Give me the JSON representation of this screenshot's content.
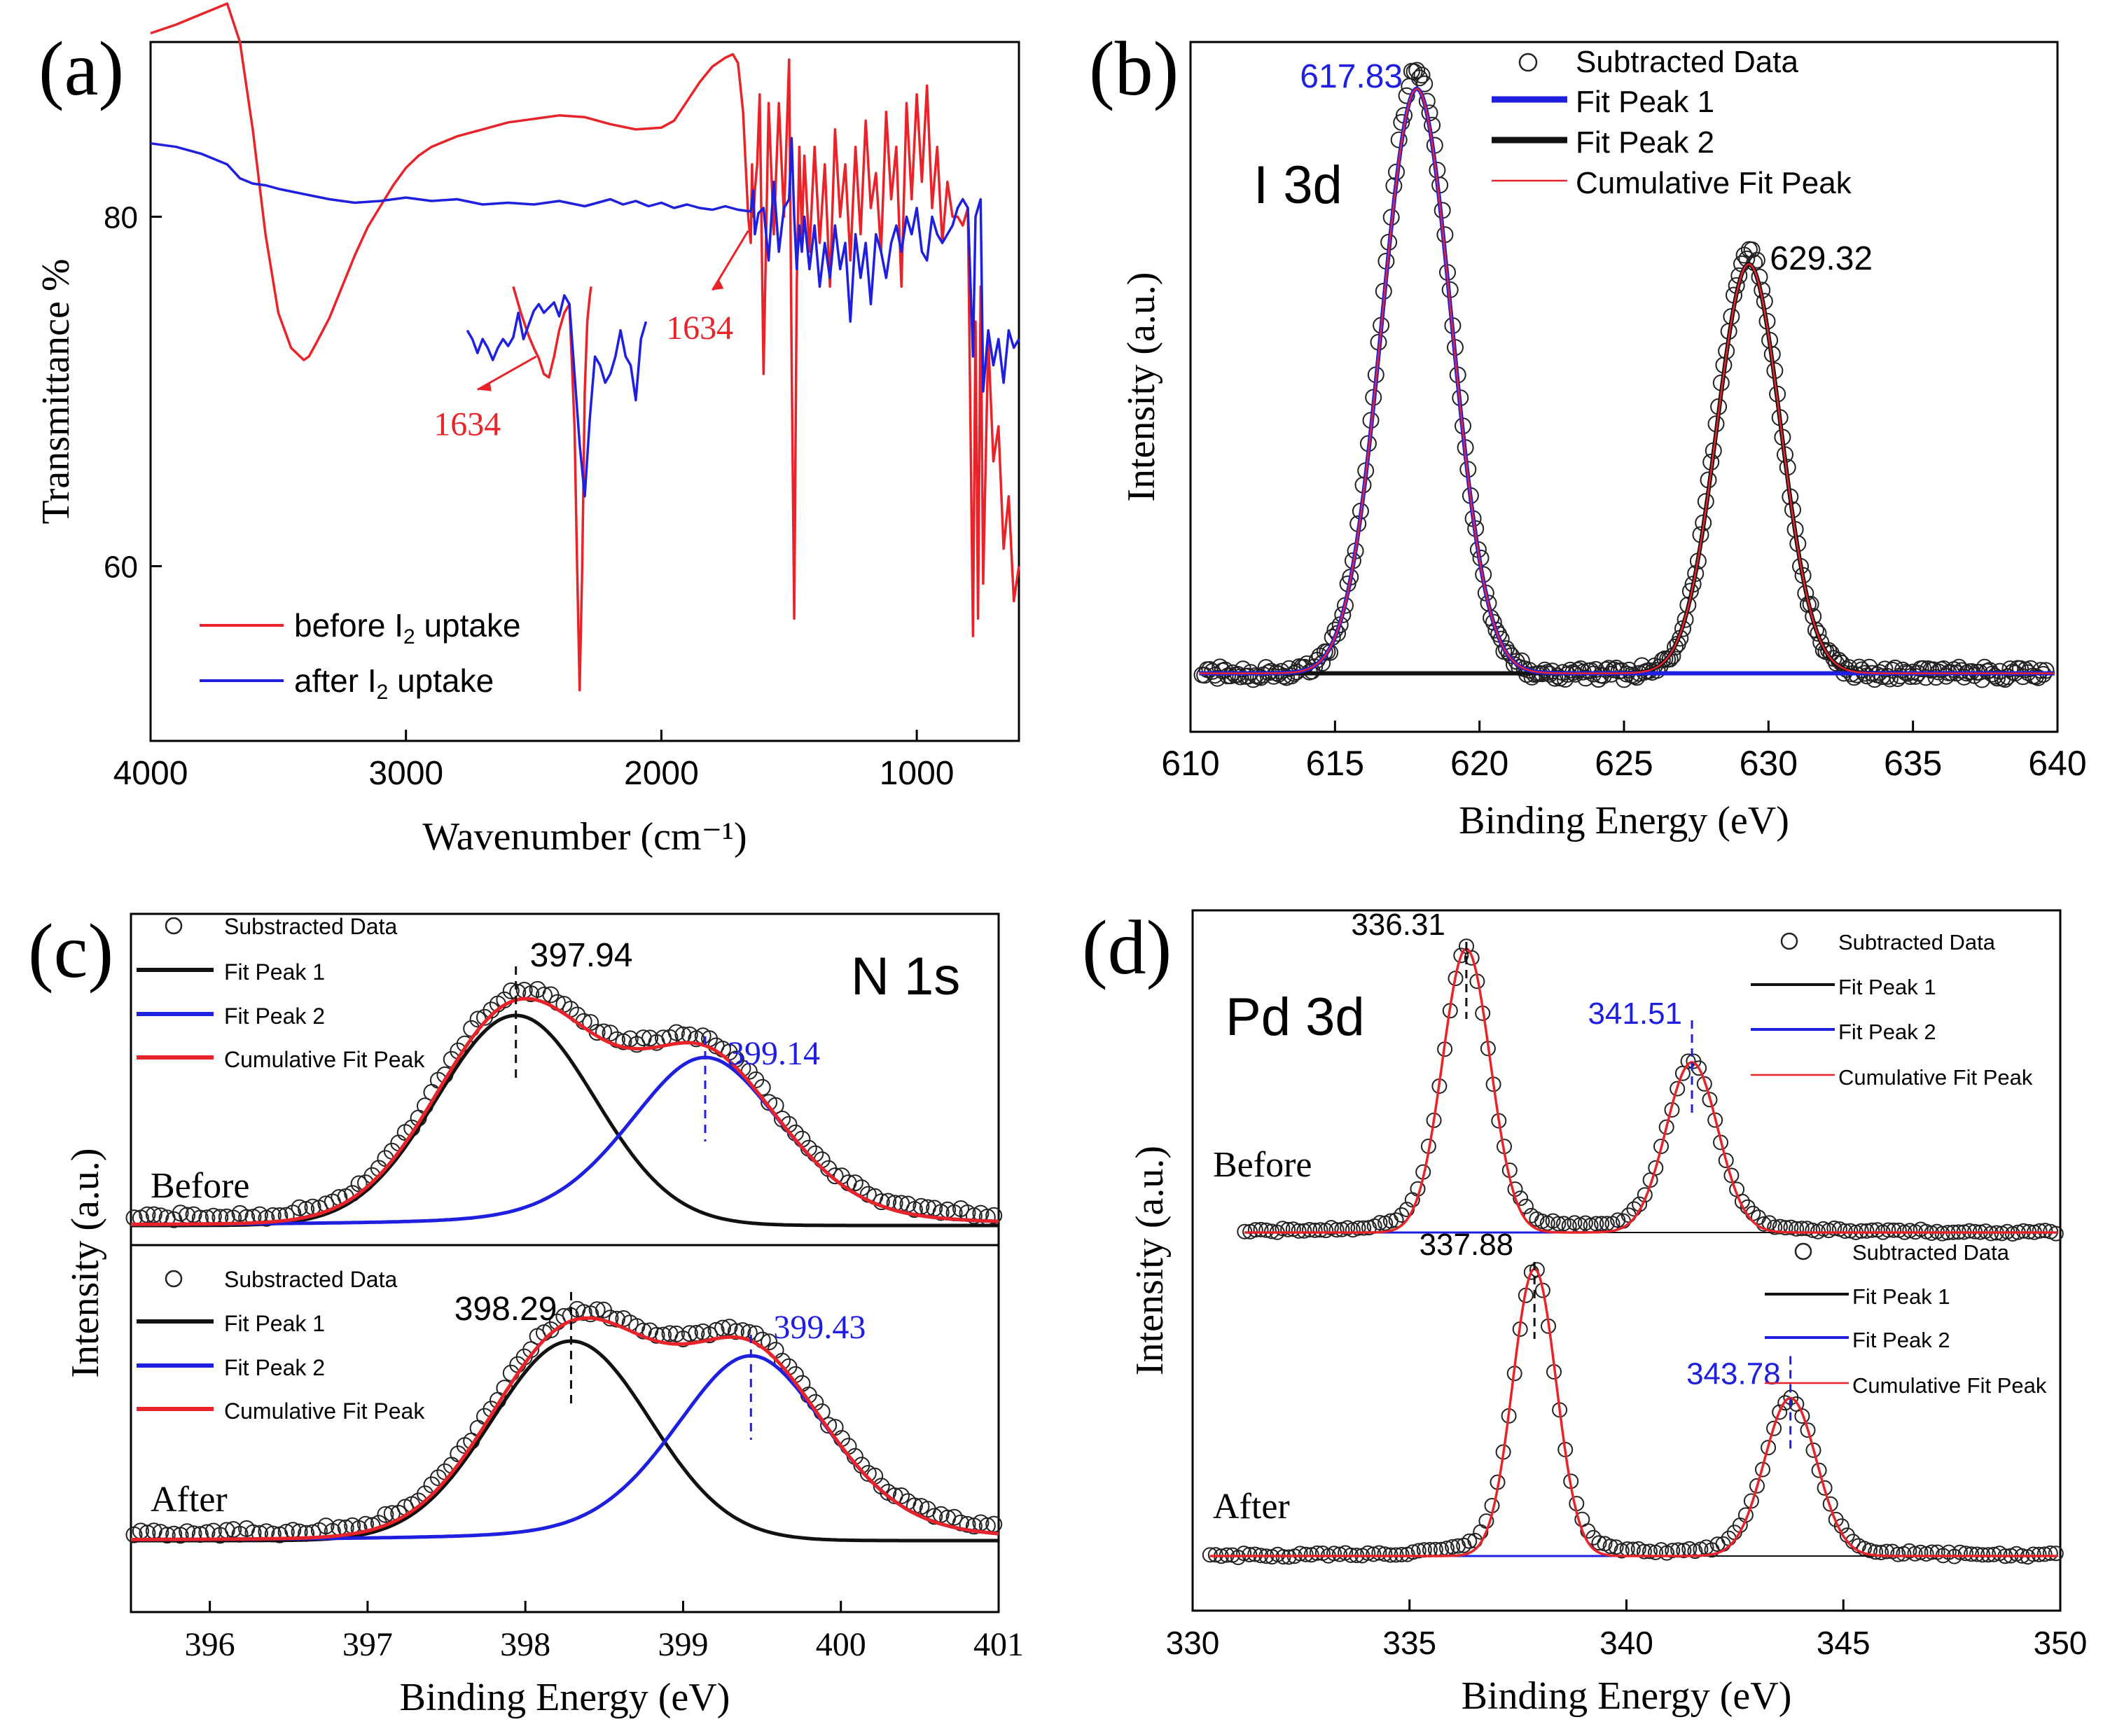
{
  "colors": {
    "red": "#e8242a",
    "blue": "#1f1fe0",
    "black": "#111111",
    "marker": "#222222"
  },
  "chart_data": [
    {
      "id": "a",
      "type": "line",
      "panel_label": "(a)",
      "xlabel": "Wavenumber (cm⁻¹)",
      "ylabel": "Transmittance %",
      "xlim": [
        4000,
        600
      ],
      "ylim": [
        50,
        90
      ],
      "xticks": [
        4000,
        3000,
        2000,
        1000
      ],
      "yticks": [
        60,
        80
      ],
      "legend": {
        "before_label": "before I",
        "after_label": "after I",
        "sub": "2",
        "suffix": " uptake"
      },
      "annotations": [
        "1634",
        "1634"
      ],
      "series": [
        {
          "name": "before I2 uptake",
          "color": "red",
          "x": [
            4000,
            3900,
            3800,
            3700,
            3650,
            3600,
            3550,
            3500,
            3450,
            3400,
            3380,
            3350,
            3300,
            3250,
            3200,
            3150,
            3100,
            3050,
            3000,
            2950,
            2900,
            2800,
            2700,
            2600,
            2500,
            2400,
            2300,
            2200,
            2100,
            2000,
            1950,
            1900,
            1850,
            1800,
            1750,
            1720,
            1700,
            1680,
            1660,
            1650,
            1645,
            1640,
            1634,
            1625,
            1615,
            1600,
            1580,
            1560,
            1540,
            1520,
            1500,
            1490,
            1480,
            1470,
            1460,
            1450,
            1440,
            1420,
            1400,
            1380,
            1360,
            1340,
            1320,
            1300,
            1280,
            1260,
            1240,
            1220,
            1200,
            1180,
            1160,
            1140,
            1120,
            1100,
            1080,
            1060,
            1040,
            1020,
            1000,
            980,
            960,
            940,
            920,
            900,
            880,
            860,
            840,
            820,
            800,
            780,
            770,
            760,
            750,
            740,
            720,
            700,
            680,
            660,
            640,
            620,
            600
          ],
          "y": [
            90.5,
            91.0,
            91.6,
            92.2,
            90.0,
            85.0,
            79.0,
            74.5,
            72.5,
            71.8,
            72.0,
            72.8,
            74.2,
            76.0,
            77.8,
            79.4,
            80.6,
            81.8,
            82.8,
            83.5,
            84.0,
            84.6,
            85.0,
            85.4,
            85.6,
            85.8,
            85.7,
            85.3,
            85.0,
            85.1,
            85.5,
            86.6,
            87.7,
            88.6,
            89.1,
            89.3,
            88.8,
            86.0,
            80.0,
            78.5,
            83.0,
            80.0,
            81.5,
            83.0,
            87.0,
            71.0,
            86.5,
            79.0,
            86.5,
            80.0,
            89.0,
            72.0,
            57.0,
            76.0,
            84.0,
            79.0,
            83.5,
            78.0,
            84.0,
            78.5,
            83.0,
            76.0,
            85.0,
            80.0,
            83.0,
            77.5,
            84.0,
            79.0,
            85.5,
            80.5,
            82.5,
            78.0,
            86.0,
            81.0,
            84.0,
            76.0,
            86.5,
            81.0,
            87.0,
            82.0,
            87.5,
            80.5,
            84.0,
            78.5,
            82.0,
            80.0,
            80.0,
            79.5,
            80.5,
            56.0,
            74.0,
            57.0,
            76.0,
            59.0,
            73.0,
            66.0,
            68.0,
            61.0,
            64.0,
            58.0,
            60.0
          ]
        },
        {
          "name": "after I2 uptake",
          "color": "blue",
          "x": [
            4000,
            3900,
            3800,
            3700,
            3650,
            3600,
            3550,
            3500,
            3400,
            3300,
            3200,
            3100,
            3000,
            2900,
            2800,
            2700,
            2600,
            2500,
            2400,
            2300,
            2200,
            2150,
            2100,
            2050,
            2000,
            1950,
            1900,
            1850,
            1800,
            1750,
            1700,
            1650,
            1640,
            1634,
            1620,
            1600,
            1580,
            1560,
            1540,
            1520,
            1500,
            1490,
            1480,
            1470,
            1460,
            1450,
            1440,
            1420,
            1400,
            1380,
            1360,
            1340,
            1320,
            1300,
            1280,
            1260,
            1240,
            1220,
            1200,
            1180,
            1160,
            1140,
            1120,
            1100,
            1080,
            1060,
            1040,
            1020,
            1000,
            980,
            960,
            940,
            920,
            900,
            880,
            860,
            840,
            820,
            800,
            780,
            770,
            760,
            750,
            740,
            720,
            700,
            680,
            660,
            640,
            620,
            600
          ],
          "y": [
            84.2,
            84.0,
            83.6,
            83.0,
            82.2,
            81.9,
            81.8,
            81.6,
            81.3,
            81.0,
            80.8,
            80.9,
            81.1,
            80.9,
            81.0,
            80.7,
            80.8,
            80.7,
            80.9,
            80.6,
            81.0,
            80.7,
            80.9,
            80.6,
            80.8,
            80.5,
            80.7,
            80.5,
            80.4,
            80.6,
            80.4,
            80.3,
            81.5,
            79.0,
            80.2,
            80.5,
            77.5,
            82.0,
            78.0,
            80.5,
            81.0,
            84.5,
            80.0,
            77.0,
            79.5,
            78.0,
            80.0,
            77.0,
            79.5,
            76.0,
            78.5,
            76.5,
            79.5,
            77.0,
            78.5,
            74.0,
            79.0,
            76.5,
            78.5,
            75.0,
            79.0,
            78.0,
            76.5,
            78.5,
            79.5,
            78.0,
            80.0,
            79.0,
            80.5,
            78.0,
            77.5,
            80.0,
            79.0,
            78.5,
            79.0,
            79.5,
            80.5,
            81.0,
            80.5,
            72.0,
            80.0,
            80.5,
            81.0,
            70.0,
            73.5,
            71.5,
            73.0,
            70.5,
            73.5,
            72.5,
            73.0
          ]
        }
      ],
      "inset": {
        "series": [
          {
            "name": "before (inset)",
            "color": "red",
            "x": [
              2580,
              2550,
              2520,
              2500,
              2480,
              2460,
              2440,
              2420,
              2400,
              2380,
              2360,
              2340,
              2330,
              2320,
              2310,
              2300,
              2290,
              2280,
              2275
            ],
            "y": [
              76,
              74.5,
              73.2,
              72.5,
              71.9,
              71.0,
              70.8,
              72.0,
              73.5,
              74.5,
              75.0,
              68.0,
              60.0,
              52.9,
              60.0,
              70.0,
              74.0,
              75.5,
              76.0
            ]
          },
          {
            "name": "after (inset)",
            "color": "blue",
            "x": [
              2760,
              2740,
              2720,
              2700,
              2680,
              2660,
              2640,
              2620,
              2600,
              2580,
              2560,
              2540,
              2520,
              2500,
              2480,
              2460,
              2440,
              2420,
              2400,
              2380,
              2360,
              2340,
              2320,
              2300,
              2280,
              2260,
              2240,
              2220,
              2200,
              2180,
              2160,
              2140,
              2120,
              2100,
              2080,
              2060
            ],
            "y": [
              73.5,
              73.0,
              72.2,
              73.0,
              72.5,
              71.8,
              72.5,
              73.0,
              72.6,
              73.1,
              74.5,
              73.0,
              73.8,
              74.6,
              75.0,
              74.5,
              74.8,
              75.1,
              74.3,
              75.5,
              75.0,
              71.0,
              67.0,
              64.0,
              68.5,
              72.0,
              71.5,
              70.5,
              71.0,
              72.0,
              73.5,
              72.0,
              71.5,
              69.5,
              73.0,
              74.0
            ]
          }
        ]
      }
    },
    {
      "id": "b",
      "type": "scatter",
      "panel_label": "(b)",
      "inner_label": "I 3d",
      "xlabel": "Binding Energy (eV)",
      "ylabel": "Intensity (a.u.)",
      "xlim": [
        610,
        640
      ],
      "ylim": [
        -0.1,
        1.08
      ],
      "xticks": [
        610,
        615,
        620,
        625,
        630,
        635,
        640
      ],
      "legend": [
        "Subtracted Data",
        "Fit Peak 1",
        "Fit Peak 2",
        "Cumulative Fit Peak"
      ],
      "peaks": [
        {
          "center": 617.83,
          "amplitude": 1.0,
          "width": 1.2,
          "color": "blue",
          "label": "617.83"
        },
        {
          "center": 629.32,
          "amplitude": 0.7,
          "width": 1.1,
          "color": "black",
          "label": "629.32"
        }
      ]
    },
    {
      "id": "c",
      "type": "scatter",
      "panel_label": "(c)",
      "inner_label": "N 1s",
      "xlabel": "Binding Energy (eV)",
      "ylabel": "Intensity (a.u.)",
      "xlim": [
        395.5,
        401
      ],
      "xticks": [
        396,
        397,
        398,
        399,
        400,
        401
      ],
      "subplots": [
        {
          "label": "Before",
          "legend": [
            "Substracted Data",
            "Fit Peak 1",
            "Fit Peak 2",
            "Cumulative Fit Peak"
          ],
          "peaks": [
            {
              "center": 397.94,
              "amplitude": 1.0,
              "width": 0.5,
              "color": "black",
              "label": "397.94"
            },
            {
              "center": 399.14,
              "amplitude": 0.8,
              "width": 0.5,
              "color": "blue",
              "label": "399.14"
            }
          ]
        },
        {
          "label": "After",
          "legend": [
            "Substracted Data",
            "Fit Peak 1",
            "Fit Peak 2",
            "Cumulative Fit Peak"
          ],
          "peaks": [
            {
              "center": 398.29,
              "amplitude": 0.95,
              "width": 0.5,
              "color": "black",
              "label": "398.29"
            },
            {
              "center": 399.43,
              "amplitude": 0.88,
              "width": 0.5,
              "color": "blue",
              "label": "399.43"
            }
          ]
        }
      ]
    },
    {
      "id": "d",
      "type": "scatter",
      "panel_label": "(d)",
      "inner_label": "Pd 3d",
      "xlabel": "Binding Energy (eV)",
      "ylabel": "Intensity (a.u.)",
      "xlim": [
        330,
        350
      ],
      "xticks": [
        330,
        335,
        340,
        345,
        350
      ],
      "subplots": [
        {
          "label": "Before",
          "legend": [
            "Subtracted Data",
            "Fit Peak 1",
            "Fit Peak 2",
            "Cumulative Fit Peak"
          ],
          "peaks": [
            {
              "center": 336.31,
              "amplitude": 1.0,
              "width": 0.55,
              "color": "black",
              "label": "336.31"
            },
            {
              "center": 341.51,
              "amplitude": 0.6,
              "width": 0.6,
              "color": "blue",
              "label": "341.51"
            }
          ]
        },
        {
          "label": "After",
          "legend": [
            "Subtracted Data",
            "Fit Peak 1",
            "Fit Peak 2",
            "Cumulative Fit Peak"
          ],
          "peaks": [
            {
              "center": 337.88,
              "amplitude": 1.0,
              "width": 0.5,
              "color": "black",
              "label": "337.88"
            },
            {
              "center": 343.78,
              "amplitude": 0.55,
              "width": 0.6,
              "color": "blue",
              "label": "343.78"
            }
          ]
        }
      ]
    }
  ]
}
